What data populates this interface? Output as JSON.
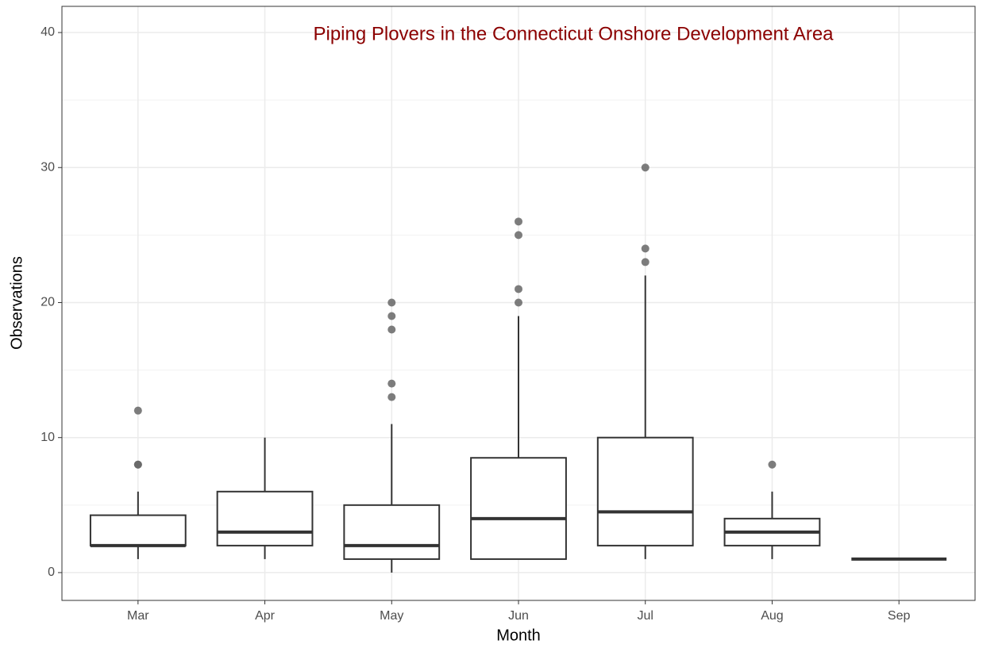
{
  "chart_data": {
    "type": "box",
    "title": "Piping Plovers in the Connecticut Onshore Development Area",
    "x_label": "Month",
    "y_label": "Observations",
    "categories": [
      "Mar",
      "Apr",
      "May",
      "Jun",
      "Jul",
      "Aug",
      "Sep"
    ],
    "boxes": [
      {
        "low": 1,
        "q1": 2,
        "median": 2,
        "q3": 4.25,
        "high": 6,
        "outliers": [
          8,
          8,
          12
        ]
      },
      {
        "low": 1,
        "q1": 2,
        "median": 3,
        "q3": 6,
        "high": 10,
        "outliers": []
      },
      {
        "low": 0,
        "q1": 1,
        "median": 2,
        "q3": 5,
        "high": 11,
        "outliers": [
          13,
          14,
          18,
          19,
          20
        ]
      },
      {
        "low": 1,
        "q1": 1,
        "median": 4,
        "q3": 8.5,
        "high": 19,
        "outliers": [
          20,
          21,
          25,
          26
        ]
      },
      {
        "low": 1,
        "q1": 2,
        "median": 4.5,
        "q3": 10,
        "high": 22,
        "outliers": [
          23,
          24,
          30
        ]
      },
      {
        "low": 1,
        "q1": 2,
        "median": 3,
        "q3": 4,
        "high": 6,
        "outliers": [
          8
        ]
      },
      {
        "low": 1,
        "q1": 1,
        "median": 1,
        "q3": 1,
        "high": 1,
        "outliers": []
      }
    ],
    "color": "#333333",
    "outlier_color": "#666666",
    "ylim": [
      -2.06,
      41.94
    ],
    "yticks": [
      0,
      10,
      20,
      30,
      40
    ],
    "grid": true
  }
}
